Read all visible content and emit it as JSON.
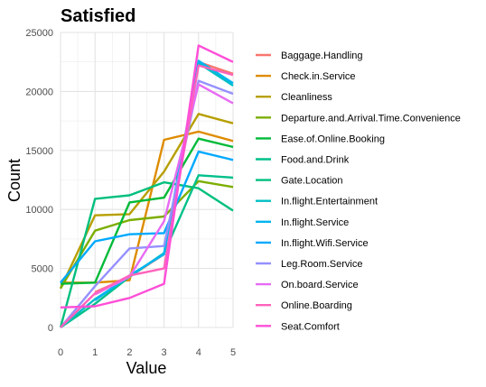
{
  "chart_data": {
    "type": "line",
    "title": "Satisfied",
    "xlabel": "Value",
    "ylabel": "Count",
    "x": [
      0,
      1,
      2,
      3,
      4,
      5
    ],
    "xlim": [
      0,
      5
    ],
    "ylim": [
      0,
      25000
    ],
    "x_ticks": [
      "0",
      "1",
      "2",
      "3",
      "4",
      "5"
    ],
    "y_ticks": [
      "0",
      "5000",
      "10000",
      "15000",
      "20000",
      "25000"
    ],
    "grid": true,
    "legend_position": "right",
    "series": [
      {
        "name": "Baggage.Handling",
        "color": "#F8766D",
        "values": [
          null,
          3000,
          4300,
          6200,
          22500,
          21500
        ]
      },
      {
        "name": "Check.in.Service",
        "color": "#DE8C00",
        "values": [
          3800,
          3800,
          4000,
          15900,
          16600,
          15800
        ]
      },
      {
        "name": "Cleanliness",
        "color": "#B79F00",
        "values": [
          3300,
          9500,
          9600,
          13200,
          18100,
          17300
        ]
      },
      {
        "name": "Departure.and.Arrival.Time.Convenience",
        "color": "#7CAE00",
        "values": [
          3300,
          8200,
          9100,
          9400,
          12400,
          11900
        ]
      },
      {
        "name": "Ease.of.Online.Booking",
        "color": "#00BA38",
        "values": [
          3700,
          3800,
          10600,
          11000,
          16000,
          15300
        ]
      },
      {
        "name": "Food.and.Drink",
        "color": "#00C08B",
        "values": [
          0,
          2000,
          4300,
          6300,
          12900,
          12700
        ]
      },
      {
        "name": "Gate.Location",
        "color": "#00BF7D",
        "values": [
          0,
          10900,
          11200,
          12300,
          11800,
          9900
        ]
      },
      {
        "name": "In.flight.Entertainment",
        "color": "#00BFC4",
        "values": [
          0,
          2400,
          4300,
          6300,
          22400,
          20500
        ]
      },
      {
        "name": "In.flight.Service",
        "color": "#00B4F0",
        "values": [
          null,
          2300,
          4400,
          6200,
          22600,
          20700
        ]
      },
      {
        "name": "In.flight.Wifi.Service",
        "color": "#00A9FF",
        "values": [
          3800,
          7300,
          7900,
          8000,
          14900,
          14200
        ]
      },
      {
        "name": "Leg.Room.Service",
        "color": "#9590FF",
        "values": [
          0,
          3500,
          6700,
          6900,
          20900,
          19800
        ]
      },
      {
        "name": "On.board.Service",
        "color": "#E76BF3",
        "values": [
          null,
          2800,
          4300,
          9000,
          20600,
          19000
        ]
      },
      {
        "name": "Online.Boarding",
        "color": "#FF62BC",
        "values": [
          0,
          2900,
          4400,
          5000,
          22200,
          21400
        ]
      },
      {
        "name": "Seat.Comfort",
        "color": "#FF4FD8",
        "values": [
          1700,
          1800,
          2500,
          3700,
          23900,
          22500
        ]
      }
    ]
  }
}
